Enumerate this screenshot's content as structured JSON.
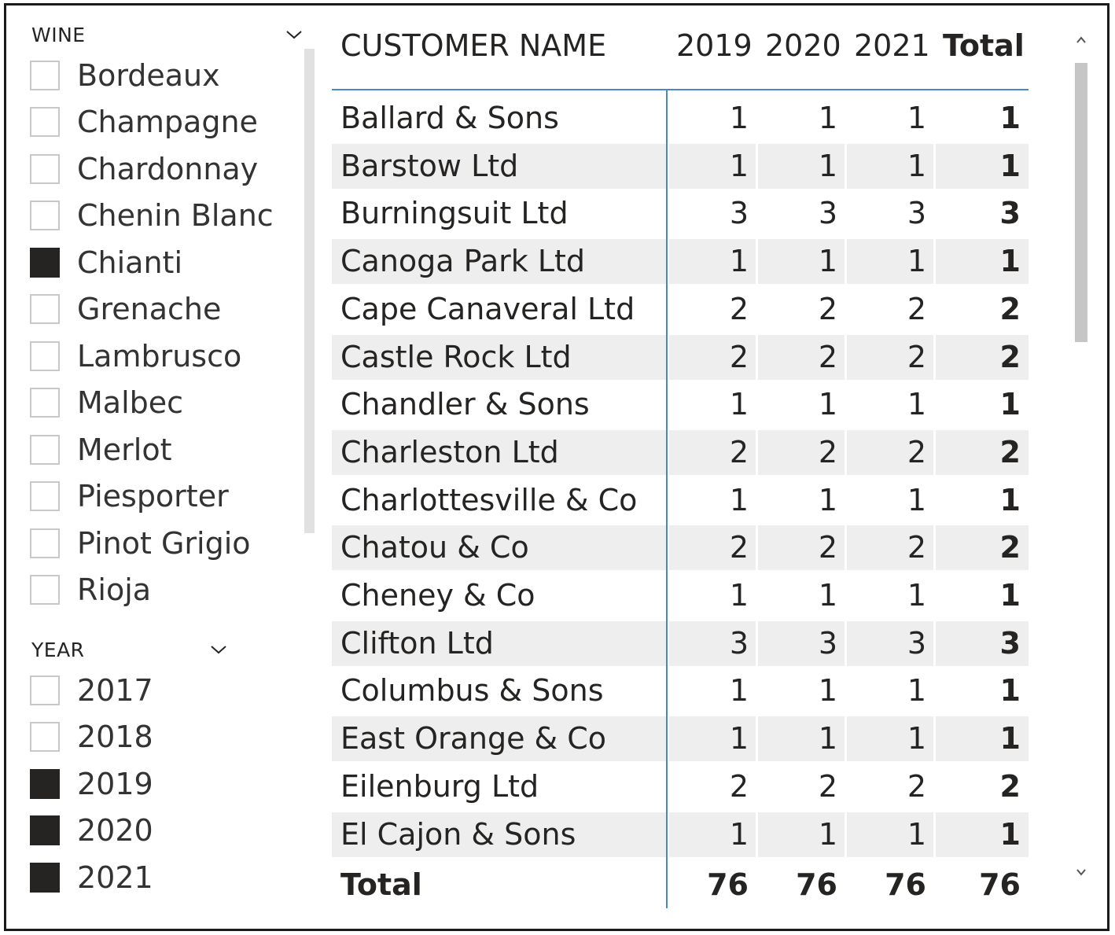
{
  "wine_slicer": {
    "header": "WINE",
    "items": [
      {
        "label": "Bordeaux",
        "checked": false
      },
      {
        "label": "Champagne",
        "checked": false
      },
      {
        "label": "Chardonnay",
        "checked": false
      },
      {
        "label": "Chenin Blanc",
        "checked": false
      },
      {
        "label": "Chianti",
        "checked": true
      },
      {
        "label": "Grenache",
        "checked": false
      },
      {
        "label": "Lambrusco",
        "checked": false
      },
      {
        "label": "Malbec",
        "checked": false
      },
      {
        "label": "Merlot",
        "checked": false
      },
      {
        "label": "Piesporter",
        "checked": false
      },
      {
        "label": "Pinot Grigio",
        "checked": false
      },
      {
        "label": "Rioja",
        "checked": false
      }
    ]
  },
  "year_slicer": {
    "header": "YEAR",
    "items": [
      {
        "label": "2017",
        "checked": false
      },
      {
        "label": "2018",
        "checked": false
      },
      {
        "label": "2019",
        "checked": true
      },
      {
        "label": "2020",
        "checked": true
      },
      {
        "label": "2021",
        "checked": true
      }
    ]
  },
  "matrix": {
    "columns": [
      "CUSTOMER NAME",
      "2019",
      "2020",
      "2021",
      "Total"
    ],
    "rows": [
      {
        "name": "Ballard & Sons",
        "v": [
          "1",
          "1",
          "1",
          "1"
        ]
      },
      {
        "name": "Barstow Ltd",
        "v": [
          "1",
          "1",
          "1",
          "1"
        ]
      },
      {
        "name": "Burningsuit Ltd",
        "v": [
          "3",
          "3",
          "3",
          "3"
        ]
      },
      {
        "name": "Canoga Park Ltd",
        "v": [
          "1",
          "1",
          "1",
          "1"
        ]
      },
      {
        "name": "Cape Canaveral Ltd",
        "v": [
          "2",
          "2",
          "2",
          "2"
        ]
      },
      {
        "name": "Castle Rock Ltd",
        "v": [
          "2",
          "2",
          "2",
          "2"
        ]
      },
      {
        "name": "Chandler & Sons",
        "v": [
          "1",
          "1",
          "1",
          "1"
        ]
      },
      {
        "name": "Charleston Ltd",
        "v": [
          "2",
          "2",
          "2",
          "2"
        ]
      },
      {
        "name": "Charlottesville & Co",
        "v": [
          "1",
          "1",
          "1",
          "1"
        ]
      },
      {
        "name": "Chatou & Co",
        "v": [
          "2",
          "2",
          "2",
          "2"
        ]
      },
      {
        "name": "Cheney & Co",
        "v": [
          "1",
          "1",
          "1",
          "1"
        ]
      },
      {
        "name": "Clifton Ltd",
        "v": [
          "3",
          "3",
          "3",
          "3"
        ]
      },
      {
        "name": "Columbus & Sons",
        "v": [
          "1",
          "1",
          "1",
          "1"
        ]
      },
      {
        "name": "East Orange & Co",
        "v": [
          "1",
          "1",
          "1",
          "1"
        ]
      },
      {
        "name": "Eilenburg Ltd",
        "v": [
          "2",
          "2",
          "2",
          "2"
        ]
      },
      {
        "name": "El Cajon & Sons",
        "v": [
          "1",
          "1",
          "1",
          "1"
        ]
      }
    ],
    "total": {
      "name": "Total",
      "v": [
        "76",
        "76",
        "76",
        "76"
      ]
    }
  },
  "icons": {
    "wine_dropdown": "chevron-down-icon",
    "year_dropdown": "chevron-down-icon",
    "scroll_up": "chevron-up-icon",
    "scroll_down": "chevron-down-icon"
  },
  "colors": {
    "checked": "#252423",
    "accent_line": "#4a87c5",
    "alt_row": "#eeeeee"
  }
}
